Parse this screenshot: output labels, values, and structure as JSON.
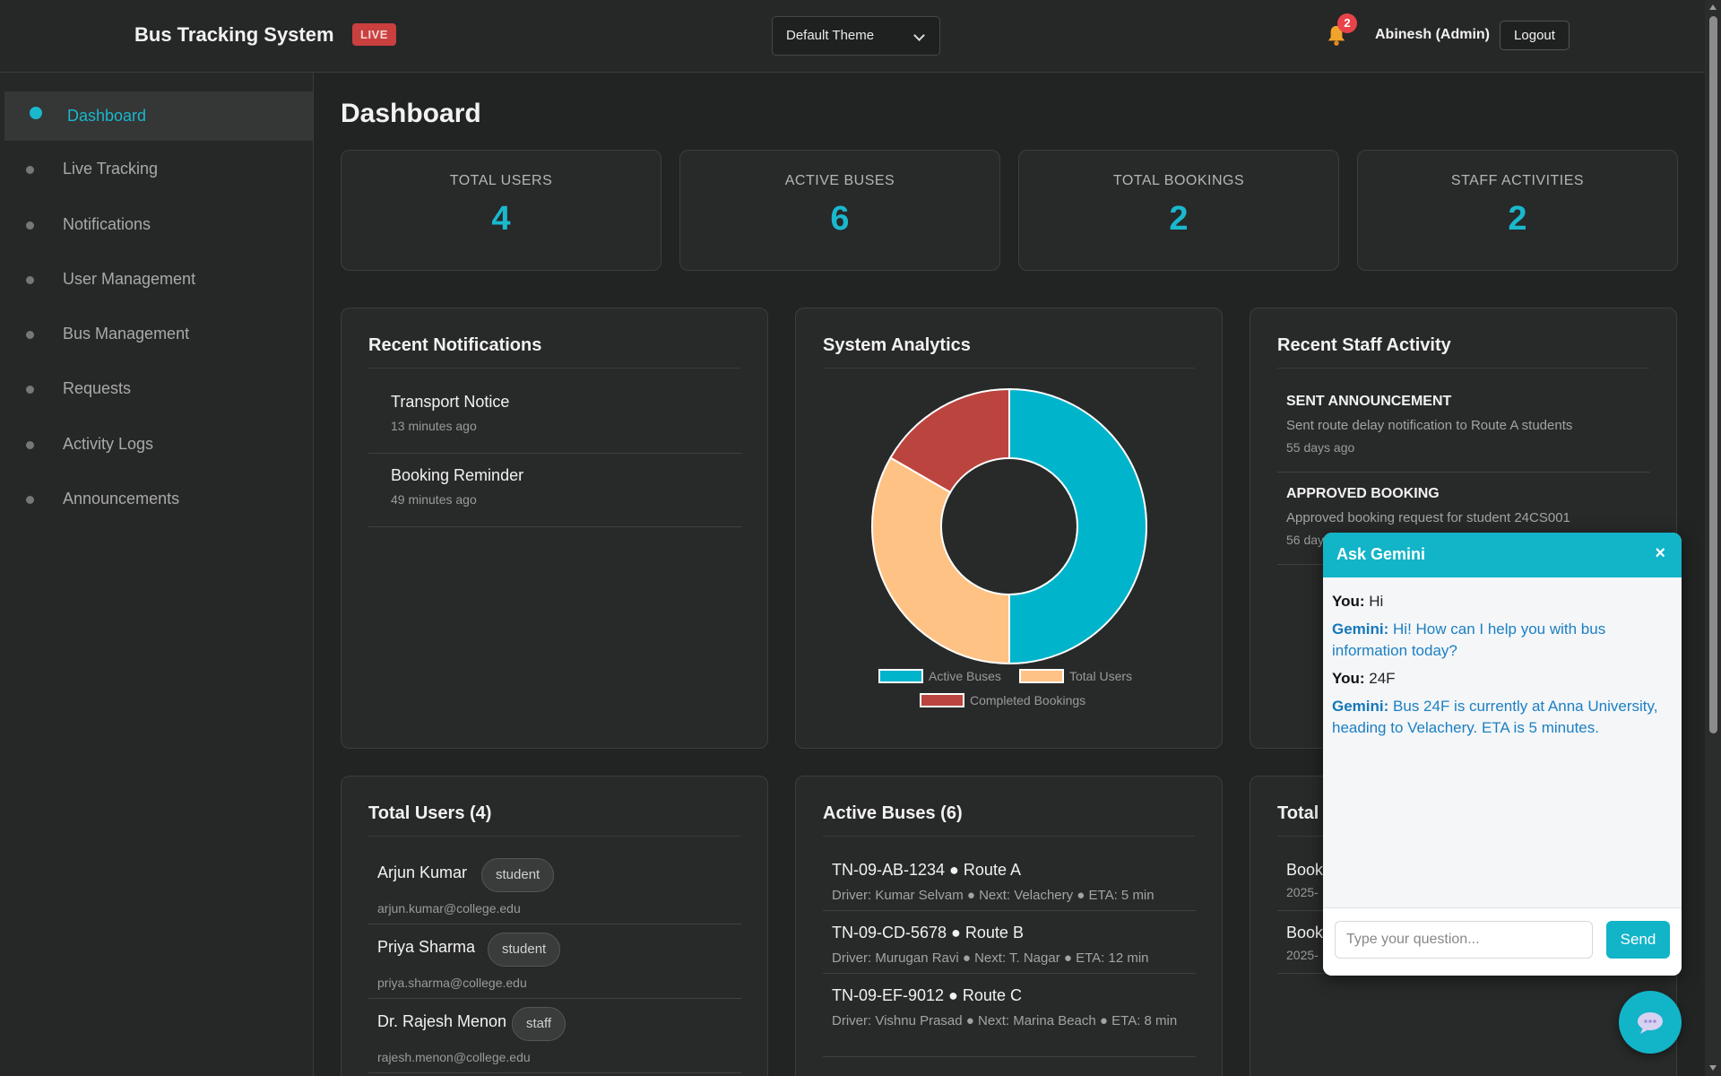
{
  "header": {
    "app_title": "Bus Tracking System",
    "live_badge": "LIVE",
    "theme_selected": "Default Theme",
    "notification_count": "2",
    "user_name": "Abinesh (Admin)",
    "logout_label": "Logout"
  },
  "sidebar": {
    "items": [
      {
        "label": "Dashboard",
        "active": true
      },
      {
        "label": "Live Tracking"
      },
      {
        "label": "Notifications"
      },
      {
        "label": "User Management"
      },
      {
        "label": "Bus Management"
      },
      {
        "label": "Requests"
      },
      {
        "label": "Activity Logs"
      },
      {
        "label": "Announcements"
      }
    ]
  },
  "page": {
    "title": "Dashboard"
  },
  "stats": [
    {
      "label": "TOTAL USERS",
      "value": "4"
    },
    {
      "label": "ACTIVE BUSES",
      "value": "6"
    },
    {
      "label": "TOTAL BOOKINGS",
      "value": "2"
    },
    {
      "label": "STAFF ACTIVITIES",
      "value": "2"
    }
  ],
  "notifications": {
    "title": "Recent Notifications",
    "items": [
      {
        "title": "Transport Notice",
        "time": "13 minutes ago"
      },
      {
        "title": "Booking Reminder",
        "time": "49 minutes ago"
      }
    ]
  },
  "analytics": {
    "title": "System Analytics",
    "chart_data": {
      "type": "pie",
      "categories": [
        "Active Buses",
        "Total Users",
        "Completed Bookings"
      ],
      "values": [
        6,
        4,
        2
      ],
      "colors": [
        "#00b4cc",
        "#ffc285",
        "#bb443f"
      ],
      "legend": "bottom"
    }
  },
  "staff_activity": {
    "title": "Recent Staff Activity",
    "items": [
      {
        "title": "SENT ANNOUNCEMENT",
        "desc": "Sent route delay notification to Route A students",
        "time": "55 days ago"
      },
      {
        "title": "APPROVED BOOKING",
        "desc": "Approved booking request for student 24CS001",
        "time": "56 days ago"
      }
    ]
  },
  "users": {
    "title": "Total Users (4)",
    "items": [
      {
        "name": "Arjun Kumar",
        "role": "student",
        "email": "arjun.kumar@college.edu"
      },
      {
        "name": "Priya Sharma",
        "role": "student",
        "email": "priya.sharma@college.edu"
      },
      {
        "name": "Dr. Rajesh Menon",
        "role": "staff",
        "email": "rajesh.menon@college.edu"
      }
    ]
  },
  "buses": {
    "title": "Active Buses (6)",
    "items": [
      {
        "title": "TN-09-AB-1234 ● Route A",
        "detail": "Driver: Kumar Selvam ● Next: Velachery ● ETA: 5 min"
      },
      {
        "title": "TN-09-CD-5678 ● Route B",
        "detail": "Driver: Murugan Ravi ● Next: T. Nagar ● ETA: 12 min"
      },
      {
        "title": "TN-09-EF-9012 ● Route C",
        "detail": "Driver: Vishnu Prasad ● Next: Marina Beach ● ETA: 8 min"
      }
    ]
  },
  "bookings": {
    "title": "Total",
    "items": [
      {
        "title": "Book",
        "date": "2025-"
      },
      {
        "title": "Book",
        "date": "2025-"
      }
    ]
  },
  "chat": {
    "title": "Ask Gemini",
    "close": "×",
    "messages": [
      {
        "who": "You:",
        "text": " Hi",
        "type": "you"
      },
      {
        "who": "Gemini:",
        "text": " Hi! How can I help you with bus information today?",
        "type": "gem"
      },
      {
        "who": "You:",
        "text": " 24F",
        "type": "you"
      },
      {
        "who": "Gemini:",
        "text": " Bus 24F is currently at Anna University, heading to Velachery. ETA is 5 minutes.",
        "type": "gem"
      }
    ],
    "input_placeholder": "Type your question...",
    "send_label": "Send"
  }
}
